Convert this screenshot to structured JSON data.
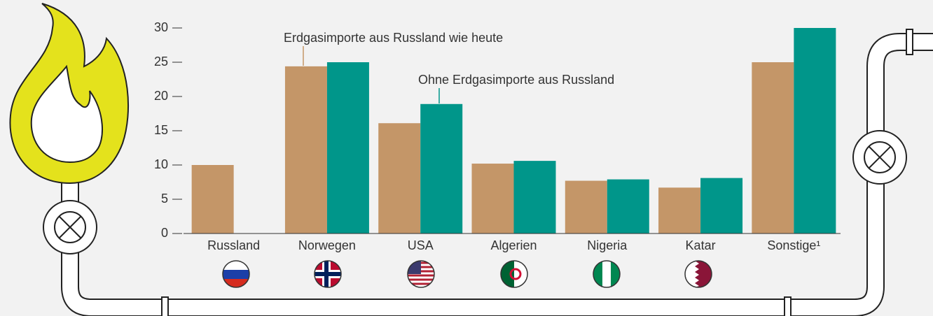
{
  "chart_data": {
    "type": "bar",
    "categories": [
      "Russland",
      "Norwegen",
      "USA",
      "Algerien",
      "Nigeria",
      "Katar",
      "Sonstige¹"
    ],
    "series": [
      {
        "name": "Erdgasimporte aus Russland wie heute",
        "color": "#c49668",
        "values": [
          10,
          24.4,
          16.1,
          10.2,
          7.7,
          6.7,
          25.0
        ]
      },
      {
        "name": "Ohne Erdgasimporte aus Russland",
        "color": "#00968a",
        "values": [
          null,
          25.0,
          18.9,
          10.6,
          7.9,
          8.1,
          30
        ]
      }
    ],
    "ylim": [
      0,
      30
    ],
    "yticks": [
      0,
      5,
      10,
      15,
      20,
      25,
      30
    ],
    "grid": false
  }
}
